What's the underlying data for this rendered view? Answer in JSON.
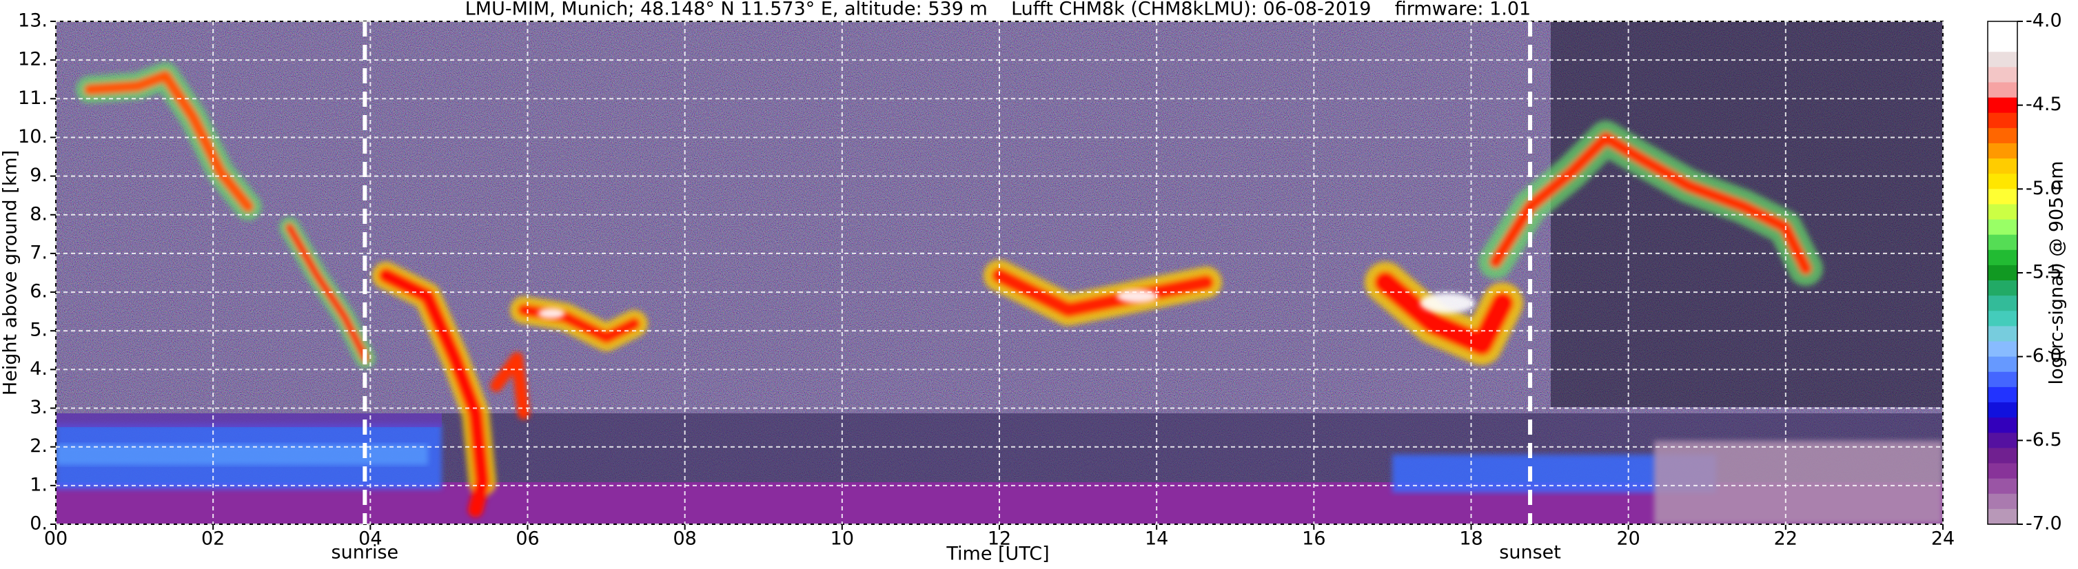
{
  "chart_data": {
    "type": "heatmap",
    "title": "LMU-MIM, Munich; 48.148° N 11.573° E, altitude: 539 m    Lufft CHM8k (CHM8kLMU): 06-08-2019    firmware: 1.01",
    "x_label": "Time [UTC]",
    "y_label": "Height above ground [km]",
    "xlim": [
      0,
      24
    ],
    "xticks": [
      {
        "value": 0,
        "label": "00"
      },
      {
        "value": 2,
        "label": "02"
      },
      {
        "value": 4,
        "label": "04"
      },
      {
        "value": 6,
        "label": "06"
      },
      {
        "value": 8,
        "label": "08"
      },
      10,
      12,
      14,
      16,
      18,
      20,
      22,
      24
    ],
    "ylim": [
      0,
      13
    ],
    "yticks": [
      {
        "value": 0,
        "label": "0."
      },
      {
        "value": 1,
        "label": "1."
      },
      {
        "value": 2,
        "label": "2."
      },
      {
        "value": 3,
        "label": "3."
      },
      {
        "value": 4,
        "label": "4."
      },
      {
        "value": 5,
        "label": "5."
      },
      {
        "value": 6,
        "label": "6."
      },
      {
        "value": 7,
        "label": "7."
      },
      {
        "value": 8,
        "label": "8."
      },
      {
        "value": 9,
        "label": "9."
      },
      {
        "value": 10,
        "label": "10."
      },
      {
        "value": 11,
        "label": "11."
      },
      {
        "value": 12,
        "label": "12."
      },
      {
        "value": 13,
        "label": "13."
      }
    ],
    "grid": true,
    "annotations": [
      {
        "x": 3.93,
        "label": "sunrise"
      },
      {
        "x": 18.75,
        "label": "sunset"
      }
    ],
    "colorbar": {
      "label": "log(rc-signal) @ 905 nm",
      "lim": [
        -7.0,
        -4.0
      ],
      "ticks": [
        {
          "value": -4.0,
          "label": "-4.0"
        },
        {
          "value": -4.5,
          "label": "-4.5"
        },
        {
          "value": -5.0,
          "label": "-5.0"
        },
        {
          "value": -5.5,
          "label": "-5.5"
        },
        {
          "value": -6.0,
          "label": "-6.0"
        },
        {
          "value": -6.5,
          "label": "-6.5"
        },
        {
          "value": -7.0,
          "label": "-7.0"
        }
      ],
      "colors": [
        "#ffffff",
        "#ffffff",
        "#ebdede",
        "#f3c6c6",
        "#f6a3a3",
        "#ff0000",
        "#ff3300",
        "#ff6600",
        "#ff9900",
        "#ffcc00",
        "#ffe600",
        "#ffff33",
        "#ccff44",
        "#99ff66",
        "#55dd55",
        "#22bb33",
        "#119922",
        "#22aa66",
        "#33bb99",
        "#44ccbb",
        "#77ccdd",
        "#88bbff",
        "#6699ff",
        "#4466ff",
        "#2233ff",
        "#1111dd",
        "#3300bb",
        "#5511a0",
        "#702090",
        "#883399",
        "#9a55a5",
        "#aa7aaf",
        "#b898b8"
      ]
    }
  }
}
